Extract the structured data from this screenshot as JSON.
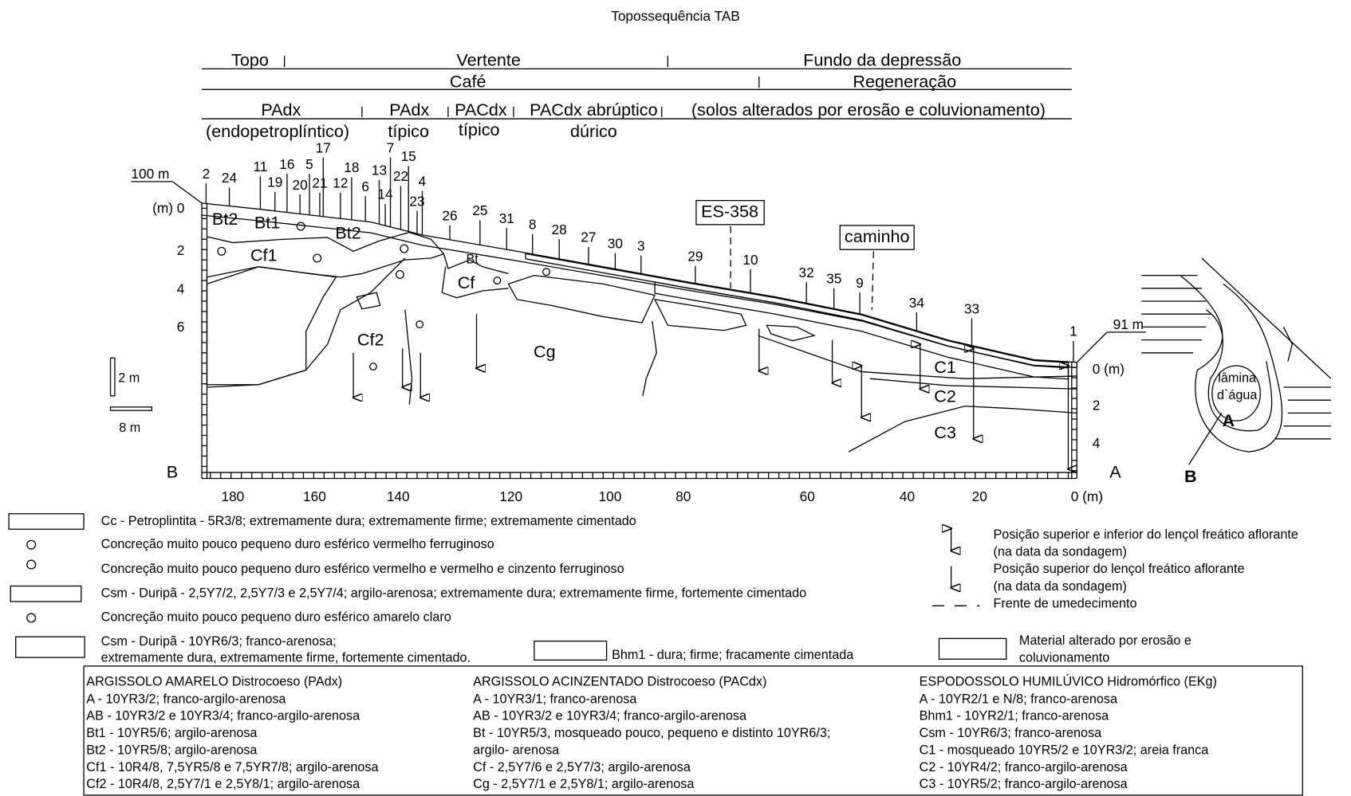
{
  "title": "Topossequência TAB",
  "header": {
    "position": [
      "Topo",
      "Vertente",
      "Fundo da depressão"
    ],
    "land_use": [
      "Café",
      "Regeneração"
    ],
    "soils": [
      "PAdx",
      "PAdx",
      "PACdx",
      "PACdx abrúptico",
      "(solos alterados por erosão e coluvionamento)"
    ],
    "soil_qualifiers": [
      "(endopetroplíntico)",
      "típico",
      "típico",
      "dúrico"
    ]
  },
  "profile": {
    "elevation_left": "100 m",
    "elevation_right": "91 m",
    "depth_left": [
      "(m) 0",
      "2",
      "4",
      "6"
    ],
    "depth_right": [
      "0 (m)",
      "2",
      "4"
    ],
    "distance": [
      "180",
      "160",
      "140",
      "120",
      "100",
      "80",
      "60",
      "40",
      "20",
      "0 (m)"
    ],
    "ends": [
      "B",
      "A"
    ],
    "scale": [
      "2 m",
      "8 m"
    ],
    "boreholes": [
      "2",
      "24",
      "11",
      "19",
      "16",
      "20",
      "17",
      "5",
      "21",
      "12",
      "18",
      "6",
      "13",
      "7",
      "14",
      "15",
      "22",
      "4",
      "23",
      "26",
      "25",
      "31",
      "8",
      "28",
      "27",
      "30",
      "3",
      "29",
      "10",
      "32",
      "35",
      "9",
      "34",
      "33",
      "1"
    ],
    "horizons": [
      "Bt2",
      "Bt1",
      "Bt2",
      "Cf1",
      "Bt",
      "Cf",
      "Cf2",
      "Cg",
      "C1",
      "C2",
      "C3"
    ],
    "landmarks": [
      "ES-358",
      "caminho"
    ]
  },
  "inset": {
    "water": [
      "lâmina",
      "d`água"
    ],
    "points": [
      "A",
      "B"
    ]
  },
  "legend": {
    "items": [
      {
        "lines": [
          "Cc - Petroplintita - 5R3/8; extremamente dura; extremamente firme; extremamente cimentado"
        ]
      },
      {
        "lines": [
          "Concreção muito pouco pequeno duro esférico vermelho ferruginoso"
        ]
      },
      {
        "lines": [
          "Concreção muito pouco pequeno duro esférico vermelho e vermelho e cinzento ferruginoso"
        ]
      },
      {
        "lines": [
          "Csm - Duripã - 2,5Y7/2, 2,5Y7/3 e 2,5Y7/4; argilo-arenosa; extremamente dura; extremamente firme, fortemente cimentado"
        ]
      },
      {
        "lines": [
          "Concreção muito pouco pequeno duro esférico amarelo claro"
        ]
      },
      {
        "lines": [
          "Csm - Duripã - 10YR6/3; franco-arenosa;",
          "extremamente dura, extremamente firme, fortemente cimentado."
        ]
      },
      {
        "lines": [
          "Bhm1 - dura; firme; fracamente cimentada"
        ]
      },
      {
        "lines": [
          "Posição superior e inferior do lençol freático aflorante",
          "(na data da sondagem)"
        ]
      },
      {
        "lines": [
          "Posição superior do lençol freático aflorante",
          "(na data da sondagem)"
        ]
      },
      {
        "lines": [
          "Frente de umedecimento"
        ]
      },
      {
        "lines": [
          "Material alterado por erosão e",
          "coluvionamento"
        ]
      }
    ]
  },
  "soil_table": [
    {
      "title": "ARGISSOLO AMARELO Distrocoeso (PAdx)",
      "lines": [
        "A - 10YR3/2;  franco-argilo-arenosa",
        "AB - 10YR3/2 e 10YR3/4; franco-argilo-arenosa",
        "Bt1 - 10YR5/6; argilo-arenosa",
        "Bt2 - 10YR5/8; argilo-arenosa",
        "Cf1 - 10R4/8, 7,5YR5/8 e 7,5YR7/8; argilo-arenosa",
        "Cf2 - 10R4/8, 2,5Y7/1 e 2,5Y8/1; argilo-arenosa"
      ]
    },
    {
      "title": "ARGISSOLO ACINZENTADO Distrocoeso (PACdx)",
      "lines": [
        "A - 10YR3/1; franco-arenosa",
        "AB - 10YR3/2 e 10YR3/4; franco-argilo-arenosa",
        "Bt - 10YR5/3, mosqueado pouco, pequeno e distinto 10YR6/3;",
        "argilo- arenosa",
        "Cf - 2,5Y7/6 e 2,5Y7/3; argilo-arenosa",
        "Cg - 2,5Y7/1 e 2,5Y8/1; argilo-arenosa"
      ]
    },
    {
      "title": "ESPODOSSOLO HUMILÚVICO Hidromórfico (EKg)",
      "lines": [
        "A - 10YR2/1 e N/8; franco-arenosa",
        "Bhm1 - 10YR2/1; franco-arenosa",
        "Csm - 10YR6/3; franco-arenosa",
        "C1 - mosqueado 10YR5/2 e 10YR3/2; areia franca",
        "C2 - 10YR4/2; franco-argilo-arenosa",
        "C3 - 10YR5/2; franco-argilo-arenosa"
      ]
    }
  ]
}
